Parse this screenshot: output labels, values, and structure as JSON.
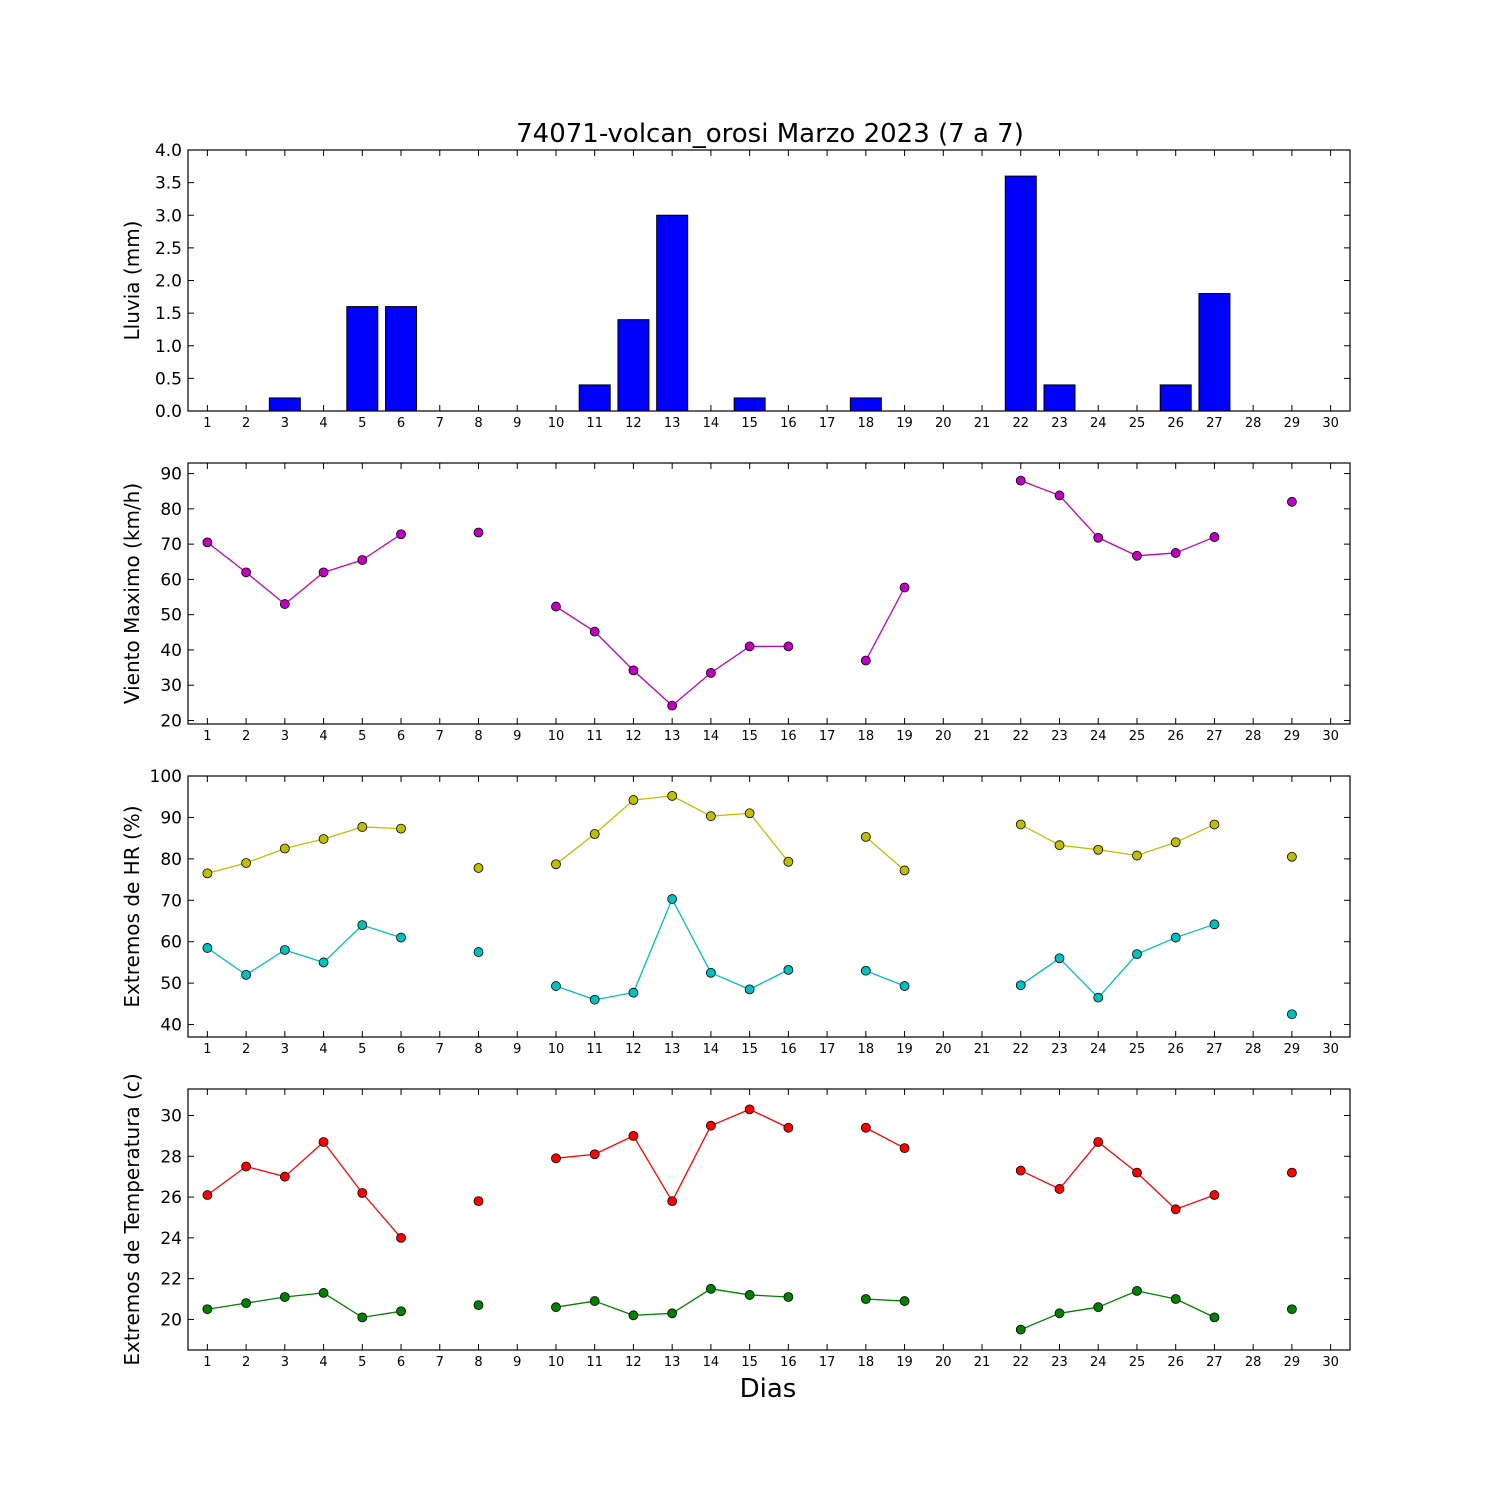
{
  "title": "74071-volcan_orosi Marzo 2023  (7 a 7)",
  "xlabel": "Dias",
  "x_ticks": [
    "1",
    "2",
    "3",
    "4",
    "5",
    "6",
    "7",
    "8",
    "9",
    "10",
    "11",
    "12",
    "13",
    "14",
    "15",
    "16",
    "17",
    "18",
    "19",
    "20",
    "21",
    "22",
    "23",
    "24",
    "25",
    "26",
    "27",
    "28",
    "29",
    "30"
  ],
  "chart_data": [
    {
      "type": "bar",
      "ylabel": "Lluvia (mm)",
      "ylim": [
        0,
        4.0
      ],
      "y_ticks": [
        "0.0",
        "0.5",
        "1.0",
        "1.5",
        "2.0",
        "2.5",
        "3.0",
        "3.5",
        "4.0"
      ],
      "categories": [
        1,
        2,
        3,
        4,
        5,
        6,
        7,
        8,
        9,
        10,
        11,
        12,
        13,
        14,
        15,
        16,
        17,
        18,
        19,
        20,
        21,
        22,
        23,
        24,
        25,
        26,
        27,
        28,
        29,
        30
      ],
      "values": [
        0,
        0,
        0.2,
        0,
        1.6,
        1.6,
        0,
        0,
        0,
        0,
        0.4,
        1.4,
        3.0,
        0,
        0.2,
        0,
        0,
        0.2,
        0,
        0,
        0,
        3.6,
        0.4,
        0,
        0,
        0.4,
        1.8,
        0,
        0,
        null
      ],
      "color": "#0000ff"
    },
    {
      "type": "line",
      "ylabel": "Viento Maximo (km/h)",
      "ylim": [
        19,
        93
      ],
      "y_ticks": [
        "20",
        "30",
        "40",
        "50",
        "60",
        "70",
        "80",
        "90"
      ],
      "x": [
        1,
        2,
        3,
        4,
        5,
        6,
        7,
        8,
        9,
        10,
        11,
        12,
        13,
        14,
        15,
        16,
        17,
        18,
        19,
        20,
        21,
        22,
        23,
        24,
        25,
        26,
        27,
        28,
        29,
        30
      ],
      "series": [
        {
          "color": "#bf00bf",
          "values": [
            70.5,
            62,
            53,
            62,
            65.5,
            72.8,
            null,
            73.3,
            null,
            52.3,
            45.2,
            34.2,
            24.2,
            33.5,
            41,
            41,
            null,
            37,
            57.7,
            null,
            null,
            88,
            83.8,
            71.8,
            66.7,
            67.5,
            72,
            null,
            82,
            null
          ]
        }
      ]
    },
    {
      "type": "line",
      "ylabel": "Extremos de HR (%)",
      "ylim": [
        37,
        100
      ],
      "y_ticks": [
        "40",
        "50",
        "60",
        "70",
        "80",
        "90",
        "100"
      ],
      "x": [
        1,
        2,
        3,
        4,
        5,
        6,
        7,
        8,
        9,
        10,
        11,
        12,
        13,
        14,
        15,
        16,
        17,
        18,
        19,
        20,
        21,
        22,
        23,
        24,
        25,
        26,
        27,
        28,
        29,
        30
      ],
      "series": [
        {
          "color": "#bfbf00",
          "values": [
            76.5,
            79,
            82.5,
            84.8,
            87.7,
            87.3,
            null,
            77.8,
            null,
            78.7,
            86,
            94.2,
            95.2,
            90.3,
            91,
            79.3,
            null,
            85.3,
            77.2,
            null,
            null,
            88.3,
            83.3,
            82.2,
            80.8,
            84,
            88.3,
            null,
            80.5,
            null
          ]
        },
        {
          "color": "#00bfbf",
          "values": [
            58.5,
            52,
            58,
            55,
            64,
            61,
            null,
            57.5,
            null,
            49.3,
            46,
            47.7,
            70.3,
            52.5,
            48.5,
            53.2,
            null,
            53,
            49.3,
            null,
            null,
            49.5,
            56,
            46.5,
            57,
            61,
            64.2,
            null,
            42.5,
            null
          ]
        }
      ]
    },
    {
      "type": "line",
      "ylabel": "Extremos de Temperatura (c)",
      "ylim": [
        18.5,
        31.3
      ],
      "y_ticks": [
        "20",
        "22",
        "24",
        "26",
        "28",
        "30"
      ],
      "x": [
        1,
        2,
        3,
        4,
        5,
        6,
        7,
        8,
        9,
        10,
        11,
        12,
        13,
        14,
        15,
        16,
        17,
        18,
        19,
        20,
        21,
        22,
        23,
        24,
        25,
        26,
        27,
        28,
        29,
        30
      ],
      "series": [
        {
          "color": "#ff0000",
          "values": [
            26.1,
            27.5,
            27,
            28.7,
            26.2,
            24,
            null,
            25.8,
            null,
            27.9,
            28.1,
            29,
            25.8,
            29.5,
            30.3,
            29.4,
            null,
            29.4,
            28.4,
            null,
            null,
            27.3,
            26.4,
            28.7,
            27.2,
            25.4,
            26.1,
            null,
            27.2,
            null
          ]
        },
        {
          "color": "#008000",
          "values": [
            20.5,
            20.8,
            21.1,
            21.3,
            20.1,
            20.4,
            null,
            20.7,
            null,
            20.6,
            20.9,
            20.2,
            20.3,
            21.5,
            21.2,
            21.1,
            null,
            21,
            20.9,
            null,
            null,
            19.5,
            20.3,
            20.6,
            21.4,
            21,
            20.1,
            null,
            20.5,
            null
          ]
        }
      ]
    }
  ]
}
